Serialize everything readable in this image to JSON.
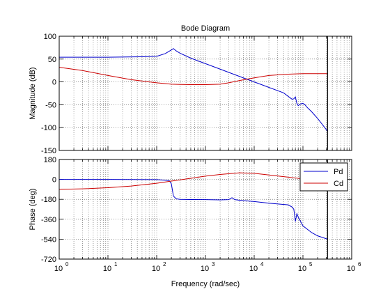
{
  "chart_data": {
    "type": "line",
    "title": "Bode Diagram",
    "xlabel": "Frequency  (rad/sec)",
    "x_scale": "log",
    "xlim": [
      1,
      1000000
    ],
    "x_ticks": [
      {
        "value": 1,
        "mantissa": "10",
        "exp": "0"
      },
      {
        "value": 10,
        "mantissa": "10",
        "exp": "1"
      },
      {
        "value": 100,
        "mantissa": "10",
        "exp": "2"
      },
      {
        "value": 1000,
        "mantissa": "10",
        "exp": "3"
      },
      {
        "value": 10000,
        "mantissa": "10",
        "exp": "4"
      },
      {
        "value": 100000,
        "mantissa": "10",
        "exp": "5"
      },
      {
        "value": 1000000,
        "mantissa": "10",
        "exp": "6"
      }
    ],
    "grid": true,
    "vertical_line_x": 320000,
    "legend": {
      "placement": "top-right of phase axes",
      "entries": [
        "Pd",
        "Cd"
      ]
    },
    "magnitude": {
      "ylabel": "Magnitude (dB)",
      "ylim": [
        -150,
        100
      ],
      "yticks": [
        100,
        50,
        0,
        -50,
        -100,
        -150
      ],
      "series": [
        {
          "name": "Pd",
          "color": "#0000cc",
          "x": [
            1,
            10,
            50,
            100,
            150,
            200,
            220,
            250,
            300,
            500,
            1000,
            2000,
            5000,
            10000,
            20000,
            40000,
            60000,
            65000,
            70000,
            75000,
            80000,
            90000,
            100000,
            110000,
            120000,
            150000,
            200000,
            320000
          ],
          "y": [
            54,
            54,
            55,
            56,
            62,
            70,
            73,
            68,
            63,
            52,
            40,
            28,
            12,
            0,
            -12,
            -24,
            -38,
            -37,
            -33,
            -47,
            -52,
            -48,
            -47,
            -50,
            -55,
            -65,
            -80,
            -108
          ]
        },
        {
          "name": "Cd",
          "color": "#cc0000",
          "x": [
            1,
            3,
            10,
            30,
            100,
            200,
            500,
            1000,
            2000,
            3000,
            5000,
            10000,
            20000,
            50000,
            100000,
            320000
          ],
          "y": [
            32,
            25,
            14,
            5,
            -2,
            -5,
            -6,
            -6,
            -5,
            -2,
            3,
            9,
            14,
            17,
            18,
            18
          ]
        }
      ]
    },
    "phase": {
      "ylabel": "Phase (deg)",
      "ylim": [
        -720,
        180
      ],
      "yticks": [
        180,
        0,
        -180,
        -360,
        -540,
        -720
      ],
      "series": [
        {
          "name": "Pd",
          "color": "#0000cc",
          "x": [
            1,
            10,
            100,
            180,
            200,
            220,
            250,
            300,
            500,
            1000,
            2000,
            3000,
            3500,
            4000,
            5000,
            10000,
            20000,
            50000,
            60000,
            65000,
            70000,
            75000,
            80000,
            100000,
            150000,
            200000,
            320000
          ],
          "y": [
            0,
            0,
            -2,
            -10,
            -40,
            -150,
            -175,
            -180,
            -182,
            -183,
            -185,
            -183,
            -165,
            -183,
            -188,
            -200,
            -215,
            -230,
            -250,
            -270,
            -380,
            -310,
            -340,
            -420,
            -480,
            -510,
            -540
          ]
        },
        {
          "name": "Cd",
          "color": "#cc0000",
          "x": [
            1,
            3,
            10,
            30,
            100,
            200,
            500,
            1000,
            2000,
            5000,
            10000,
            20000,
            50000,
            100000,
            320000
          ],
          "y": [
            -90,
            -85,
            -75,
            -60,
            -35,
            -15,
            10,
            30,
            45,
            60,
            55,
            40,
            20,
            5,
            0
          ]
        }
      ]
    }
  }
}
